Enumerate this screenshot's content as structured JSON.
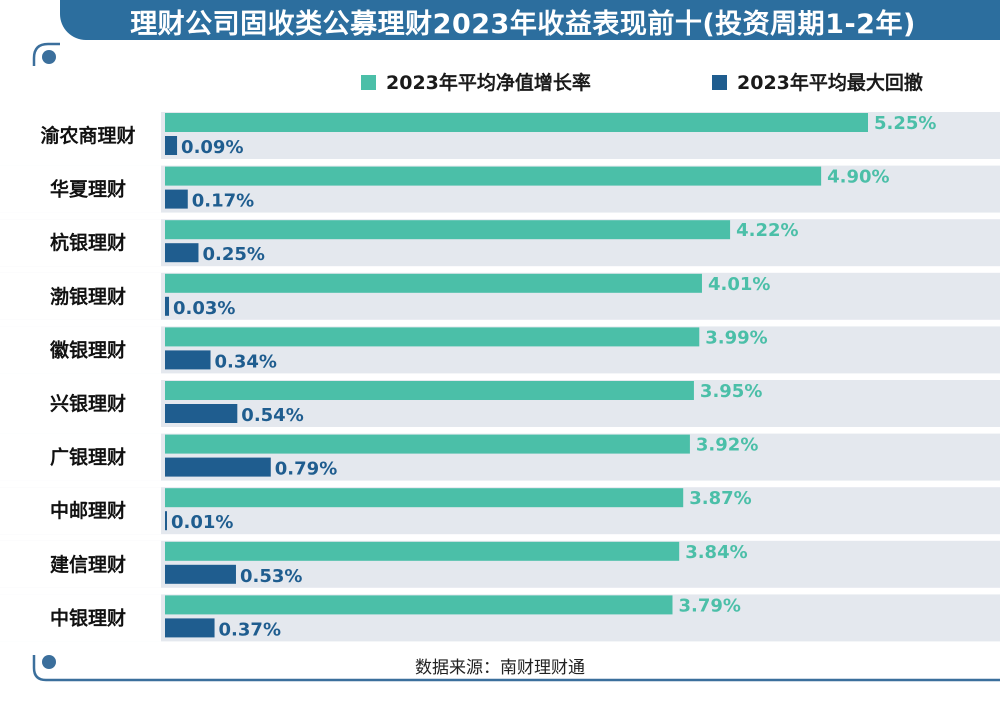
{
  "colors": {
    "title_bg": "#2c6e9e",
    "growth": "#4bbfa8",
    "drawdown": "#1f5d8f",
    "row_bg": "#e4e8ee",
    "frame": "#3b6f9c"
  },
  "title": "理财公司固收类公募理财2023年收益表现前十(投资周期1-2年)",
  "source": "数据来源：南财理财通",
  "chart_data": {
    "type": "bar",
    "orientation": "horizontal",
    "categories": [
      "渝农商理财",
      "华夏理财",
      "杭银理财",
      "渤银理财",
      "徽银理财",
      "兴银理财",
      "广银理财",
      "中邮理财",
      "建信理财",
      "中银理财"
    ],
    "series": [
      {
        "name": "2023年平均净值增长率",
        "values": [
          5.25,
          4.9,
          4.22,
          4.01,
          3.99,
          3.95,
          3.92,
          3.87,
          3.84,
          3.79
        ],
        "labels": [
          "5.25%",
          "4.90%",
          "4.22%",
          "4.01%",
          "3.99%",
          "3.95%",
          "3.92%",
          "3.87%",
          "3.84%",
          "3.79%"
        ]
      },
      {
        "name": "2023年平均最大回撤",
        "values": [
          0.09,
          0.17,
          0.25,
          0.03,
          0.34,
          0.54,
          0.79,
          0.01,
          0.53,
          0.37
        ],
        "labels": [
          "0.09%",
          "0.17%",
          "0.25%",
          "0.03%",
          "0.34%",
          "0.54%",
          "0.79%",
          "0.01%",
          "0.53%",
          "0.37%"
        ]
      }
    ],
    "legend_position": "top-right",
    "grid": false
  }
}
